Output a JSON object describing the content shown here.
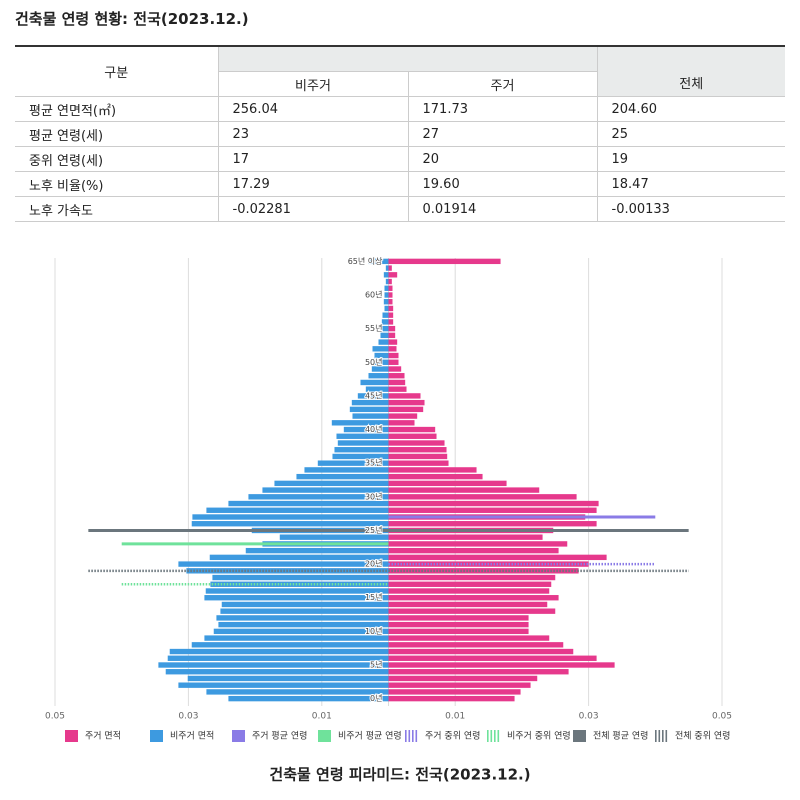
{
  "header": {
    "title": "건축물 연령 현황: 전국(2023.12.)"
  },
  "table": {
    "header": [
      "구분",
      "비주거",
      "주거",
      "전체"
    ],
    "rows": [
      [
        "평균 연면적(㎡)",
        "256.04",
        "171.73",
        "204.60"
      ],
      [
        "평균 연령(세)",
        "23",
        "27",
        "25"
      ],
      [
        "중위 연령(세)",
        "17",
        "20",
        "19"
      ],
      [
        "노후 비율(%)",
        "17.29",
        "19.60",
        "18.47"
      ],
      [
        "노후 가속도",
        "-0.02281",
        "0.01914",
        "-0.00133"
      ]
    ]
  },
  "chart_data": {
    "type": "pyramid",
    "title": "건축물 연령 피라미드: 전국(2023.12.)",
    "categories": [
      "0년",
      null,
      null,
      null,
      null,
      "5년",
      null,
      null,
      null,
      null,
      "10년",
      null,
      null,
      null,
      null,
      "15년",
      null,
      null,
      null,
      null,
      "20년",
      null,
      null,
      null,
      null,
      "25년",
      null,
      null,
      null,
      null,
      "30년",
      null,
      null,
      null,
      null,
      "35년",
      null,
      null,
      null,
      null,
      "40년",
      null,
      null,
      null,
      null,
      "45년",
      null,
      null,
      null,
      null,
      "50년",
      null,
      null,
      null,
      null,
      "55년",
      null,
      null,
      null,
      null,
      "60년",
      null,
      null,
      null,
      null,
      "65년 이상"
    ],
    "xlim": [
      -0.05,
      0.05
    ],
    "xticks": [
      {
        "value": -0.05,
        "label": "0.05"
      },
      {
        "value": -0.03,
        "label": "0.03"
      },
      {
        "value": -0.01,
        "label": "0.01"
      },
      0.01,
      0.03,
      0.05
    ],
    "grid": true,
    "series": [
      {
        "name": "주거 면적",
        "color": "#e6398c",
        "values": [
          0.0189,
          0.0198,
          0.0213,
          0.0223,
          0.027,
          0.0339,
          0.0312,
          0.0277,
          0.0262,
          0.0241,
          0.021,
          0.021,
          0.021,
          0.025,
          0.0238,
          0.0255,
          0.0241,
          0.0244,
          0.025,
          0.0285,
          0.03,
          0.0327,
          0.0255,
          0.0268,
          0.0231,
          0.0247,
          0.0312,
          0.0295,
          0.0312,
          0.0315,
          0.0282,
          0.0226,
          0.0177,
          0.0141,
          0.0132,
          0.009,
          0.0088,
          0.0087,
          0.0084,
          0.0072,
          0.007,
          0.0039,
          0.0043,
          0.0052,
          0.0054,
          0.0048,
          0.0027,
          0.0025,
          0.0024,
          0.0019,
          0.0015,
          0.0015,
          0.0012,
          0.0013,
          0.001,
          0.001,
          0.0007,
          0.0007,
          0.0007,
          0.0006,
          0.0006,
          0.0006,
          0.0005,
          0.0013,
          0.0005,
          0.0168
        ]
      },
      {
        "name": "비주거 면적",
        "color": "#3d9ae0",
        "values": [
          -0.024,
          -0.0273,
          -0.0315,
          -0.0301,
          -0.0334,
          -0.0345,
          -0.0331,
          -0.0328,
          -0.0295,
          -0.0276,
          -0.0262,
          -0.0255,
          -0.0258,
          -0.0252,
          -0.025,
          -0.0276,
          -0.0274,
          -0.0267,
          -0.0264,
          -0.0303,
          -0.0315,
          -0.0268,
          -0.0214,
          -0.0189,
          -0.0163,
          -0.0205,
          -0.0295,
          -0.0294,
          -0.0273,
          -0.024,
          -0.021,
          -0.0189,
          -0.0171,
          -0.0138,
          -0.0126,
          -0.0106,
          -0.0084,
          -0.0081,
          -0.0076,
          -0.0078,
          -0.0067,
          -0.0085,
          -0.0054,
          -0.0058,
          -0.0055,
          -0.0046,
          -0.0034,
          -0.0042,
          -0.003,
          -0.0025,
          -0.0022,
          -0.0021,
          -0.0024,
          -0.0015,
          -0.0012,
          -0.0012,
          -0.001,
          -0.0009,
          -0.0006,
          -0.0007,
          -0.0006,
          -0.0006,
          -0.0004,
          -0.0007,
          -0.0004,
          -0.003
        ]
      }
    ],
    "reference_lines": [
      {
        "name": "주거 평균 연령",
        "color": "#8a7be6",
        "dashed": false,
        "age": 27,
        "x": [
          0,
          0.04
        ]
      },
      {
        "name": "비주거 평균 연령",
        "color": "#6fe29b",
        "dashed": false,
        "age": 23,
        "x": [
          -0.04,
          0
        ]
      },
      {
        "name": "주거 중위 연령",
        "color": "#8a7be6",
        "dashed": true,
        "age": 20,
        "x": [
          0,
          0.04
        ]
      },
      {
        "name": "비주거 중위 연령",
        "color": "#6fe29b",
        "dashed": true,
        "age": 17,
        "x": [
          -0.04,
          0
        ]
      },
      {
        "name": "전체 평균 연령",
        "color": "#6b767d",
        "dashed": false,
        "age": 25,
        "x": [
          -0.045,
          0.045
        ]
      },
      {
        "name": "전체 중위 연령",
        "color": "#6b767d",
        "dashed": true,
        "age": 19,
        "x": [
          -0.045,
          0.045
        ]
      }
    ]
  }
}
